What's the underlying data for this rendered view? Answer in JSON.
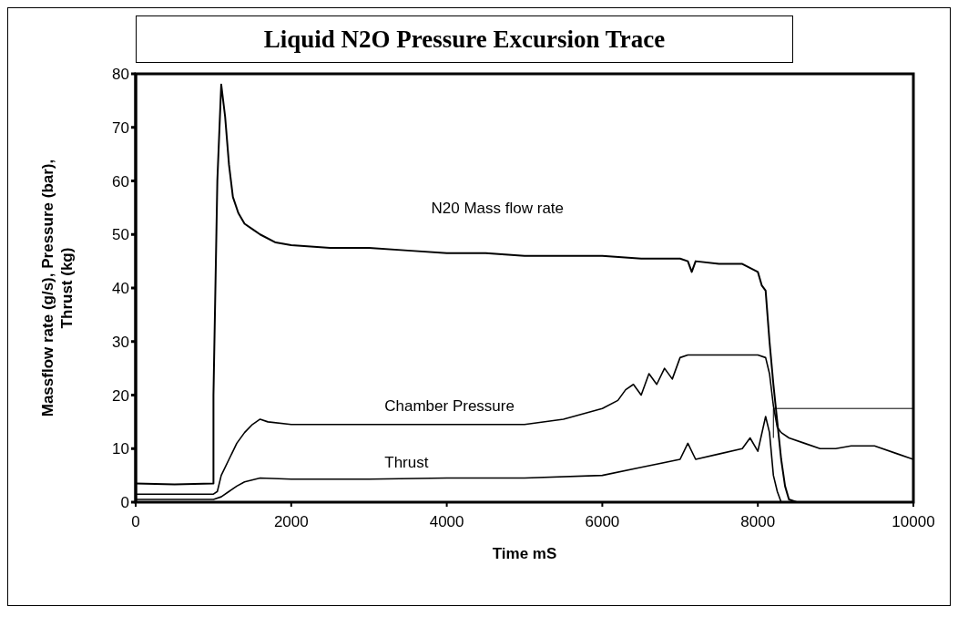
{
  "chart_data": {
    "type": "line",
    "title": "Liquid N2O Pressure Excursion Trace",
    "xlabel": "Time mS",
    "ylabel": "Massflow rate (g/s), Pressure (bar), Thrust (kg)",
    "xlim": [
      0,
      10000
    ],
    "xticks": [
      0,
      2000,
      4000,
      6000,
      8000,
      10000
    ],
    "ylim": [
      0,
      80
    ],
    "yticks": [
      0,
      10,
      20,
      30,
      40,
      50,
      60,
      70,
      80
    ],
    "marker": "none",
    "series": [
      {
        "name": "N20 Mass flow rate",
        "color": "#000000",
        "x": [
          0,
          500,
          1000,
          1000,
          1050,
          1100,
          1150,
          1200,
          1250,
          1320,
          1400,
          1500,
          1600,
          1800,
          2000,
          2500,
          3000,
          3500,
          4000,
          4500,
          5000,
          5500,
          6000,
          6500,
          7000,
          7100,
          7150,
          7200,
          7500,
          7800,
          8000,
          8050,
          8100,
          8150,
          8200,
          8250,
          8300,
          8350,
          8400,
          8500,
          9000,
          10000
        ],
        "values": [
          3.5,
          3.3,
          3.5,
          20,
          60,
          78,
          72,
          63,
          57,
          54,
          52,
          51,
          50,
          48.5,
          48,
          47.5,
          47.5,
          47,
          46.5,
          46.5,
          46,
          46,
          46,
          45.5,
          45.5,
          45,
          43,
          45,
          44.5,
          44.5,
          43,
          40.5,
          39.5,
          30,
          22,
          15,
          8,
          3,
          0.5,
          0,
          0,
          0
        ]
      },
      {
        "name": "Chamber Pressure",
        "color": "#000000",
        "x": [
          0,
          1000,
          1050,
          1100,
          1200,
          1300,
          1400,
          1500,
          1600,
          1700,
          2000,
          3000,
          4000,
          5000,
          5500,
          6000,
          6200,
          6300,
          6400,
          6500,
          6600,
          6700,
          6800,
          6900,
          7000,
          7100,
          7500,
          8000,
          8100,
          8150,
          8200,
          8250,
          8300,
          8400,
          8600,
          8800,
          9000,
          9200,
          9500,
          9800,
          10000
        ],
        "values": [
          1.5,
          1.5,
          2,
          5,
          8,
          11,
          13,
          14.5,
          15.5,
          15,
          14.5,
          14.5,
          14.5,
          14.5,
          15.5,
          17.5,
          19,
          21,
          22,
          20,
          24,
          22,
          25,
          23,
          27,
          27.5,
          27.5,
          27.5,
          27,
          24,
          18,
          14,
          13,
          12,
          11,
          10,
          10,
          10.5,
          10.5,
          9,
          8
        ]
      },
      {
        "name": "Thrust",
        "color": "#000000",
        "x": [
          0,
          1000,
          1100,
          1200,
          1300,
          1400,
          1600,
          2000,
          3000,
          4000,
          5000,
          6000,
          6500,
          7000,
          7100,
          7200,
          7500,
          7800,
          7900,
          8000,
          8100,
          8150,
          8200,
          8250,
          8300,
          10000
        ],
        "values": [
          0.5,
          0.5,
          1,
          2,
          3,
          3.8,
          4.5,
          4.3,
          4.3,
          4.5,
          4.5,
          5,
          6.5,
          8,
          11,
          8,
          9,
          10,
          12,
          9.5,
          16,
          13,
          5,
          2,
          0,
          0
        ]
      },
      {
        "color": "#000000",
        "x": [
          8200,
          8200,
          10000
        ],
        "values": [
          12,
          17.5,
          17.5
        ]
      }
    ]
  }
}
